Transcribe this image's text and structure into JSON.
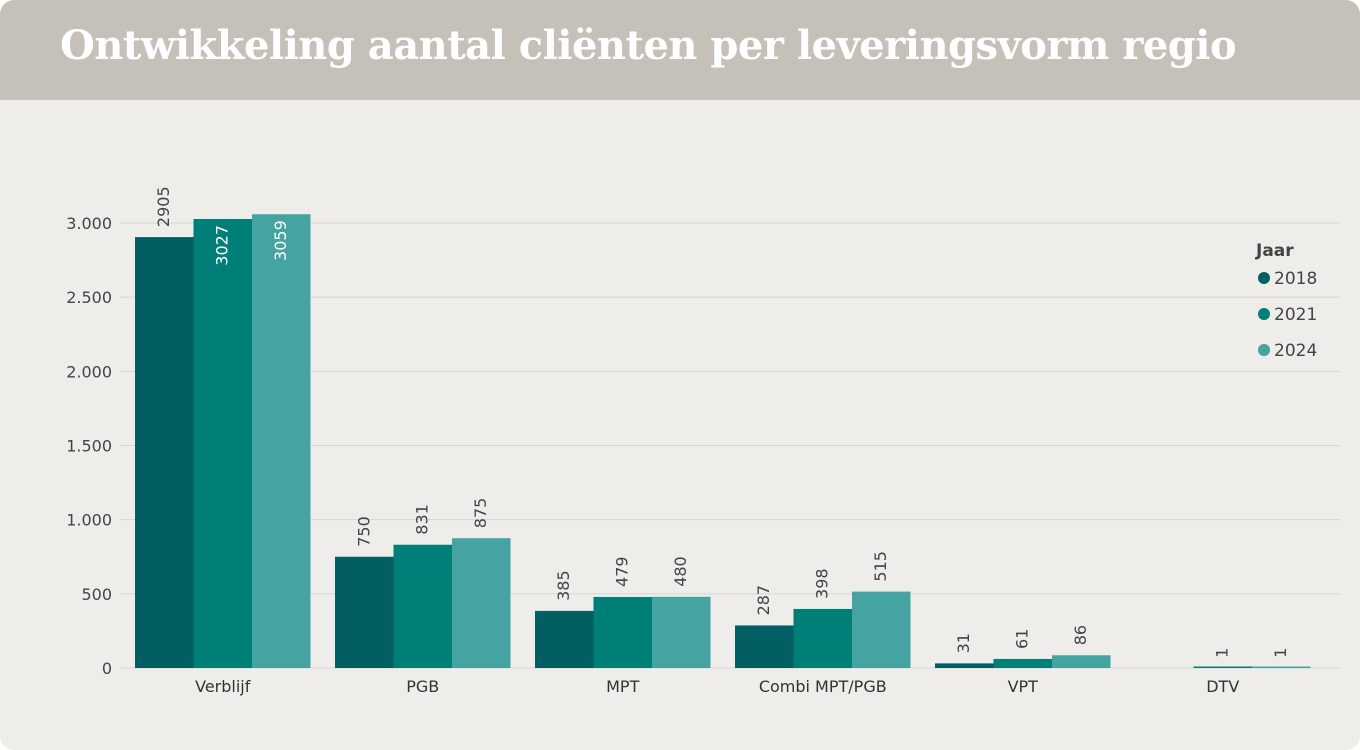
{
  "header": {
    "title": "Ontwikkeling aantal cliënten per leveringsvorm regio"
  },
  "colors": {
    "2018": "#035e63",
    "2021": "#007e78",
    "2024": "#45a3a1",
    "grid": "#d6d5d1",
    "axis_text": "#444444",
    "header_bg": "#c5c1b9",
    "panel_bg": "#eeede9"
  },
  "legend": {
    "title": "Jaar",
    "placement": "right"
  },
  "chart_data": {
    "type": "bar",
    "categories": [
      "Verblijf",
      "PGB",
      "MPT",
      "Combi MPT/PGB",
      "VPT",
      "DTV"
    ],
    "series": [
      {
        "name": "2018",
        "values": [
          2905,
          750,
          385,
          287,
          31,
          null
        ]
      },
      {
        "name": "2021",
        "values": [
          3027,
          831,
          479,
          398,
          61,
          1
        ]
      },
      {
        "name": "2024",
        "values": [
          3059,
          875,
          480,
          515,
          86,
          1
        ]
      }
    ],
    "ylim": [
      0,
      3000
    ],
    "yticks": [
      0,
      500,
      1000,
      1500,
      2000,
      2500,
      3000
    ],
    "ytick_labels": [
      "0",
      "500",
      "1.000",
      "1.500",
      "2.000",
      "2.500",
      "3.000"
    ],
    "grid": true,
    "xlabel": "",
    "ylabel": "",
    "data_labels": true
  }
}
